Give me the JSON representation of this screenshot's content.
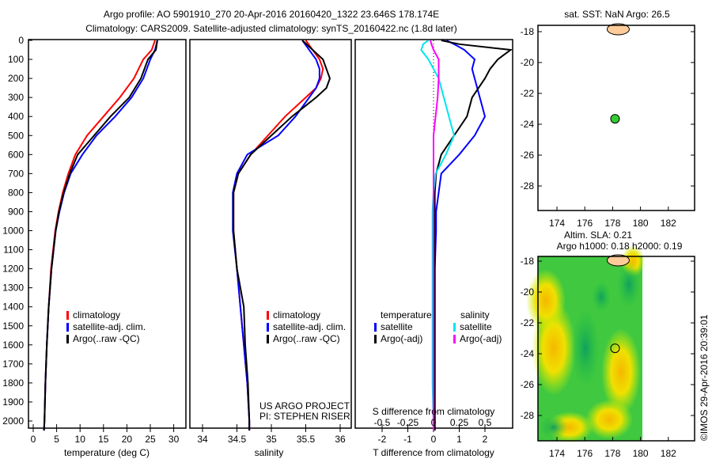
{
  "title_line1": "Argo profile: AO 5901910_270 20-Apr-2016 20160420_1322 23.646S 178.174E",
  "title_line2": "Climatology: CARS2009. Satellite-adjusted climatology: synTS_20160422.nc (1.8d later)",
  "credit": "US ARGO PROJECT",
  "pi": "PI: STEPHEN RISER",
  "stamp": "©IMOS 29-Apr-2016 20:39:01",
  "colors": {
    "clim": "#ff0000",
    "sat": "#0000ff",
    "argo": "#000000",
    "sal_sat": "#00e5ee",
    "sal_argo": "#ff00ff",
    "land": "#ffcc99"
  },
  "chart_data": [
    {
      "type": "line",
      "xlabel": "temperature (deg C)",
      "xlim": [
        -1,
        31
      ],
      "xticks": [
        "0",
        "5",
        "10",
        "15",
        "20",
        "25",
        "30"
      ],
      "ylim": [
        0,
        2050
      ],
      "yticks": [
        "0",
        "100",
        "200",
        "300",
        "400",
        "500",
        "600",
        "700",
        "800",
        "900",
        "1000",
        "1100",
        "1200",
        "1300",
        "1400",
        "1500",
        "1600",
        "1700",
        "1800",
        "1900",
        "2000"
      ],
      "legend": [
        "climatology",
        "satellite-adj. clim.",
        "Argo(..raw -QC)"
      ],
      "depth": [
        0,
        50,
        100,
        200,
        300,
        400,
        500,
        600,
        700,
        800,
        900,
        1000,
        1200,
        1400,
        1600,
        1800,
        2000,
        2050
      ],
      "series": [
        {
          "name": "climatology",
          "values": [
            26,
            25.3,
            23.5,
            21.5,
            18.5,
            15,
            11.5,
            9,
            7.5,
            6.3,
            5.4,
            4.7,
            3.8,
            3.3,
            2.9,
            2.6,
            2.4,
            2.3
          ]
        },
        {
          "name": "satellite-adj. clim.",
          "values": [
            26.5,
            26,
            25,
            23.5,
            21,
            17.5,
            13.5,
            10.5,
            8,
            6.6,
            5.6,
            4.8,
            3.9,
            3.3,
            2.9,
            2.6,
            2.4,
            2.3
          ]
        },
        {
          "name": "Argo(..raw -QC)",
          "values": [
            26.5,
            26.2,
            24.5,
            23,
            20.5,
            16.5,
            13,
            9.5,
            7.8,
            6.5,
            5.5,
            4.8,
            3.9,
            3.3,
            2.9,
            2.6,
            2.4,
            2.3
          ]
        }
      ]
    },
    {
      "type": "line",
      "xlabel": "salinity",
      "xlim": [
        33.8,
        36.05
      ],
      "xticks": [
        "34",
        "34.5",
        "35",
        "35.5",
        "36"
      ],
      "legend": [
        "climatology",
        "satellite-adj. clim.",
        "Argo(..raw -QC)"
      ],
      "depth": [
        0,
        50,
        100,
        150,
        200,
        250,
        300,
        400,
        500,
        600,
        700,
        800,
        1000,
        1200,
        1400,
        1600,
        1800,
        2000,
        2050
      ],
      "series": [
        {
          "name": "climatology",
          "values": [
            35.5,
            35.6,
            35.7,
            35.75,
            35.72,
            35.65,
            35.5,
            35.2,
            34.95,
            34.7,
            34.52,
            34.45,
            34.45,
            34.5,
            34.55,
            34.6,
            34.65,
            34.68,
            34.68
          ]
        },
        {
          "name": "satellite-adj. clim.",
          "values": [
            35.45,
            35.55,
            35.65,
            35.7,
            35.7,
            35.65,
            35.55,
            35.35,
            35.1,
            34.65,
            34.5,
            34.44,
            34.44,
            34.5,
            34.55,
            34.6,
            34.65,
            34.68,
            34.68
          ]
        },
        {
          "name": "Argo(..raw -QC)",
          "values": [
            35.45,
            35.6,
            35.75,
            35.8,
            35.85,
            35.8,
            35.65,
            35.3,
            35.0,
            34.7,
            34.52,
            34.45,
            34.45,
            34.5,
            34.6,
            34.62,
            34.66,
            34.68,
            34.68
          ]
        }
      ]
    },
    {
      "type": "line",
      "xlabel": "T difference from climatology",
      "x2label": "S difference from climatology",
      "xlim": [
        -3,
        3.1
      ],
      "xticks": [
        "-2",
        "-1",
        "0",
        "1",
        "2"
      ],
      "x2ticks": [
        "-0.5",
        "-0.25",
        "0",
        "0.25",
        "0.5"
      ],
      "legend_t": {
        "title": "temperature",
        "items": [
          "satellite",
          "Argo(-adj)"
        ]
      },
      "legend_s": {
        "title": "salinity",
        "items": [
          "satellite",
          "Argo(-adj)"
        ]
      },
      "depth": [
        0,
        20,
        50,
        100,
        150,
        200,
        300,
        400,
        500,
        600,
        700,
        800,
        900,
        1000,
        1200,
        1400,
        1600,
        1800,
        2000,
        2050
      ],
      "series": [
        {
          "name": "T satellite",
          "values": [
            0.5,
            0.8,
            1.2,
            1.6,
            1.5,
            1.6,
            1.8,
            2.0,
            1.6,
            1.0,
            0.3,
            0.2,
            0.1,
            0.1,
            0.05,
            0.05,
            0.05,
            0.05,
            0.05,
            0.05
          ]
        },
        {
          "name": "T Argo(-adj)",
          "values": [
            0.3,
            1.0,
            3.0,
            2.5,
            2.2,
            2.0,
            1.5,
            1.3,
            0.8,
            0.3,
            0.1,
            0.05,
            0.05,
            0.05,
            0.05,
            0.05,
            0.05,
            0.05,
            0.05,
            0.05
          ]
        },
        {
          "name": "S satellite",
          "values": [
            -0.05,
            -0.1,
            -0.12,
            -0.05,
            0.0,
            0.05,
            0.1,
            0.15,
            0.2,
            0.12,
            0.02,
            0.0,
            -0.01,
            -0.01,
            -0.01,
            -0.01,
            -0.01,
            -0.01,
            0.0,
            0.0
          ]
        },
        {
          "name": "S Argo(-adj)",
          "values": [
            -0.03,
            -0.02,
            0.0,
            0.05,
            0.05,
            0.05,
            0.04,
            0.02,
            0.0,
            0.0,
            0.0,
            0.0,
            0.0,
            0.0,
            0.0,
            0.0,
            0.0,
            0.0,
            0.0,
            0.0
          ]
        }
      ]
    },
    {
      "type": "scatter",
      "title": "sat. SST: NaN Argo: 26.5",
      "xticks": [
        "174",
        "176",
        "178",
        "180",
        "182"
      ],
      "yticks": [
        "-18",
        "-20",
        "-22",
        "-24",
        "-26",
        "-28"
      ],
      "point": {
        "lon": 178.174,
        "lat": -23.646
      }
    },
    {
      "type": "heatmap",
      "title1": "Altim. SLA: 0.21",
      "title2": "Argo h1000: 0.18 h2000: 0.19",
      "xticks": [
        "174",
        "176",
        "178",
        "180",
        "182"
      ],
      "yticks": [
        "-18",
        "-20",
        "-22",
        "-24",
        "-26",
        "-28"
      ],
      "point": {
        "lon": 178.174,
        "lat": -23.646
      }
    }
  ]
}
